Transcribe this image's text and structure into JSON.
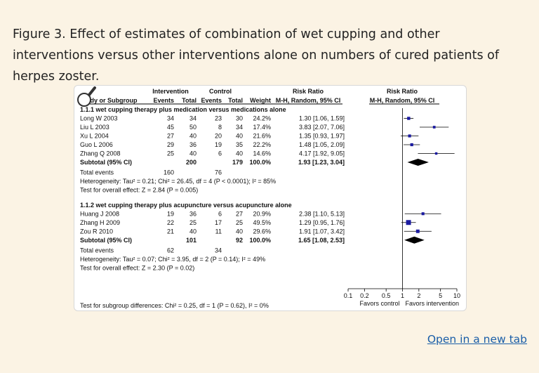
{
  "caption": "Figure 3. Effect of estimates of combination of wet cupping and other interventions versus other interventions alone on numbers of cured patients of herpes zoster.",
  "open_link": "Open in a new tab",
  "icons": {
    "zoom": "magnifier-icon"
  },
  "colors": {
    "marker": "#1a1aa0",
    "diamond": "#000000",
    "background": "#fbf3e4",
    "link": "#1a5ea8"
  },
  "chart_data": {
    "type": "forest",
    "headers": {
      "study": "Study or Subgroup",
      "intervention": "Intervention",
      "control": "Control",
      "events": "Events",
      "total": "Total",
      "weight": "Weight",
      "risk_ratio": "Risk Ratio",
      "method": "M-H, Random, 95% CI"
    },
    "subgroups": [
      {
        "title": "1.1.1 wet cupping therapy plus medication versus medications alone",
        "studies": [
          {
            "name": "Long W 2003",
            "i_events": "34",
            "i_total": "34",
            "c_events": "23",
            "c_total": "30",
            "weight": "24.2%",
            "ci_text": "1.30 [1.06, 1.59]",
            "rr": 1.3,
            "lo": 1.06,
            "hi": 1.59
          },
          {
            "name": "Liu L 2003",
            "i_events": "45",
            "i_total": "50",
            "c_events": "8",
            "c_total": "34",
            "weight": "17.4%",
            "ci_text": "3.83 [2.07, 7.06]",
            "rr": 3.83,
            "lo": 2.07,
            "hi": 7.06
          },
          {
            "name": "Xu L 2004",
            "i_events": "27",
            "i_total": "40",
            "c_events": "20",
            "c_total": "40",
            "weight": "21.6%",
            "ci_text": "1.35 [0.93, 1.97]",
            "rr": 1.35,
            "lo": 0.93,
            "hi": 1.97
          },
          {
            "name": "Guo L 2006",
            "i_events": "29",
            "i_total": "36",
            "c_events": "19",
            "c_total": "35",
            "weight": "22.2%",
            "ci_text": "1.48 [1.05, 2.09]",
            "rr": 1.48,
            "lo": 1.05,
            "hi": 2.09
          },
          {
            "name": "Zhang Q 2008",
            "i_events": "25",
            "i_total": "40",
            "c_events": "6",
            "c_total": "40",
            "weight": "14.6%",
            "ci_text": "4.17 [1.92, 9.05]",
            "rr": 4.17,
            "lo": 1.92,
            "hi": 9.05
          }
        ],
        "subtotal": {
          "label": "Subtotal (95% CI)",
          "i_total": "200",
          "c_total": "179",
          "weight": "100.0%",
          "ci_text": "1.93 [1.23, 3.04]",
          "rr": 1.93,
          "lo": 1.23,
          "hi": 3.04
        },
        "total_events": {
          "label": "Total events",
          "i_events": "160",
          "c_events": "76"
        },
        "heterogeneity": "Heterogeneity: Tau² = 0.21; Chi² = 26.45, df = 4 (P < 0.0001); I² = 85%",
        "overall_effect": "Test for overall effect: Z = 2.84 (P = 0.005)"
      },
      {
        "title": "1.1.2 wet cupping therapy plus acupuncture versus acupuncture alone",
        "studies": [
          {
            "name": "Huang J 2008",
            "i_events": "19",
            "i_total": "36",
            "c_events": "6",
            "c_total": "27",
            "weight": "20.9%",
            "ci_text": "2.38 [1.10, 5.13]",
            "rr": 2.38,
            "lo": 1.1,
            "hi": 5.13
          },
          {
            "name": "Zhang H 2009",
            "i_events": "22",
            "i_total": "25",
            "c_events": "17",
            "c_total": "25",
            "weight": "49.5%",
            "ci_text": "1.29 [0.95, 1.76]",
            "rr": 1.29,
            "lo": 0.95,
            "hi": 1.76
          },
          {
            "name": "Zou R 2010",
            "i_events": "21",
            "i_total": "40",
            "c_events": "11",
            "c_total": "40",
            "weight": "29.6%",
            "ci_text": "1.91 [1.07, 3.42]",
            "rr": 1.91,
            "lo": 1.07,
            "hi": 3.42
          }
        ],
        "subtotal": {
          "label": "Subtotal (95% CI)",
          "i_total": "101",
          "c_total": "92",
          "weight": "100.0%",
          "ci_text": "1.65 [1.08, 2.53]",
          "rr": 1.65,
          "lo": 1.08,
          "hi": 2.53
        },
        "total_events": {
          "label": "Total events",
          "i_events": "62",
          "c_events": "34"
        },
        "heterogeneity": "Heterogeneity: Tau² = 0.07; Chi² = 3.95, df = 2 (P = 0.14); I² = 49%",
        "overall_effect": "Test for overall effect: Z = 2.30 (P = 0.02)"
      }
    ],
    "axis": {
      "scale": "log",
      "ticks": [
        0.1,
        0.2,
        0.5,
        1,
        2,
        5,
        10
      ],
      "tick_labels": [
        "0.1",
        "0.2",
        "0.5",
        "1",
        "2",
        "5",
        "10"
      ],
      "range": [
        0.1,
        10
      ],
      "left_label": "Favors control",
      "right_label": "Favors intervention"
    },
    "subgroup_test": "Test for subgroup differences: Chi² = 0.25, df = 1 (P = 0.62), I² = 0%"
  }
}
